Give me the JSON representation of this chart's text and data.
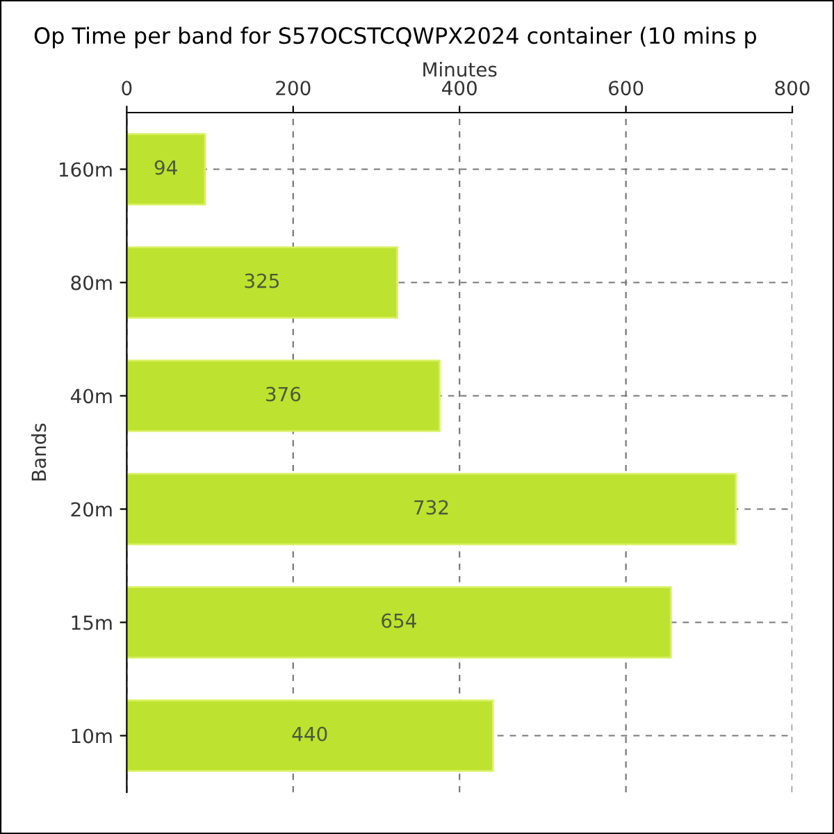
{
  "chart_data": {
    "type": "bar",
    "orientation": "horizontal",
    "title": "Op Time per band for S57OCSTCQWPX2024 container (10 mins p",
    "xlabel": "Minutes",
    "ylabel": "Bands",
    "categories": [
      "160m",
      "80m",
      "40m",
      "20m",
      "15m",
      "10m"
    ],
    "values": [
      94,
      325,
      376,
      732,
      654,
      440
    ],
    "color": "#bde22f",
    "xlim": [
      0,
      800
    ],
    "xticks": [
      0,
      200,
      400,
      600,
      800
    ],
    "grid": true,
    "data_labels": true
  }
}
